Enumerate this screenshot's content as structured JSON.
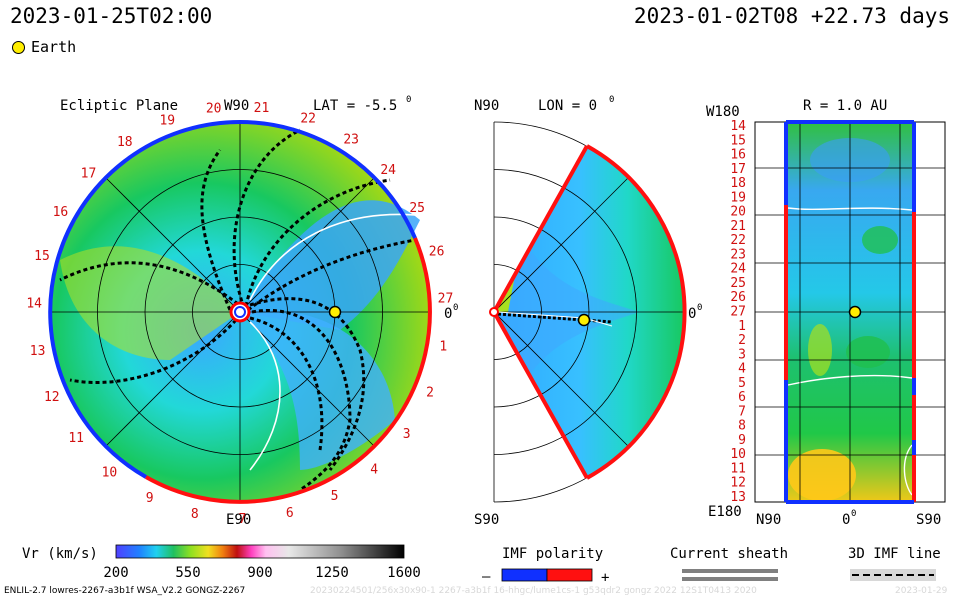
{
  "header": {
    "left_time": "2023-01-25T02:00",
    "right_time": "2023-01-02T08 +22.73 days"
  },
  "legend": {
    "earth": "Earth"
  },
  "colors": {
    "earth": "#ffee00",
    "positive": "#ff0000",
    "negative": "#0000ff",
    "sheath": "#808080"
  },
  "chart_data": [
    {
      "type": "polar-heatmap",
      "title": "Ecliptic Plane",
      "top_label": "W90",
      "lat_label": "LAT = -5.5",
      "lat_degree_symbol": "0",
      "right_label": "0",
      "right_degree_symbol": "0",
      "bottom_label": "E90",
      "carrington_rotation_labels": [
        "1",
        "2",
        "3",
        "4",
        "5",
        "6",
        "7",
        "8",
        "9",
        "10",
        "11",
        "12",
        "13",
        "14",
        "15",
        "16",
        "17",
        "18",
        "19",
        "20",
        "21",
        "22",
        "23",
        "24",
        "25",
        "26",
        "27"
      ],
      "radial_rings_au": [
        0.5,
        1.0,
        1.5,
        2.0
      ],
      "earth_position": {
        "radius_au": 1.0,
        "angle_deg": 0
      }
    },
    {
      "type": "meridional-heatmap",
      "title": "LON = 0",
      "title_degree_symbol": "0",
      "top_label": "N90",
      "bottom_label": "S90",
      "right_label": "0",
      "right_degree_symbol": "0",
      "latitude_extent_deg": [
        -60,
        60
      ],
      "earth_position": {
        "radius_au": 1.0,
        "lat_deg": 0
      }
    },
    {
      "type": "heatmap",
      "title": "R = 1.0 AU",
      "corner_top": "W180",
      "corner_bottom": "E180",
      "x_tick_labels": [
        "N90",
        "0",
        "S90"
      ],
      "x_tick_degree_symbol": "0",
      "y_tick_labels": [
        "14",
        "15",
        "16",
        "17",
        "18",
        "19",
        "20",
        "21",
        "22",
        "23",
        "24",
        "25",
        "26",
        "27",
        "1",
        "2",
        "3",
        "4",
        "5",
        "6",
        "7",
        "8",
        "9",
        "10",
        "11",
        "12",
        "13"
      ],
      "earth_position": {
        "lat_deg": 0,
        "rotation_label": "27"
      }
    }
  ],
  "colorbar": {
    "label": "Vr (km/s)",
    "ticks": [
      "200",
      "550",
      "900",
      "1250",
      "1600"
    ],
    "range": [
      200,
      1600
    ]
  },
  "imf_polarity": {
    "title": "IMF polarity",
    "minus": "–",
    "plus": "+"
  },
  "current_sheath": {
    "title": "Current sheath"
  },
  "imf_line": {
    "title": "3D IMF line"
  },
  "footer": {
    "left": "ENLIL-2.7 lowres-2267-a3b1f WSA_V2.2 GONGZ-2267",
    "ghost": "20230224501/256x30x90-1 2267-a3b1f 16-hhgc/lume1cs-1 g53qdr2 gongz 2022 12S1T0413 2020",
    "right_stamp": "2023-01-29"
  }
}
